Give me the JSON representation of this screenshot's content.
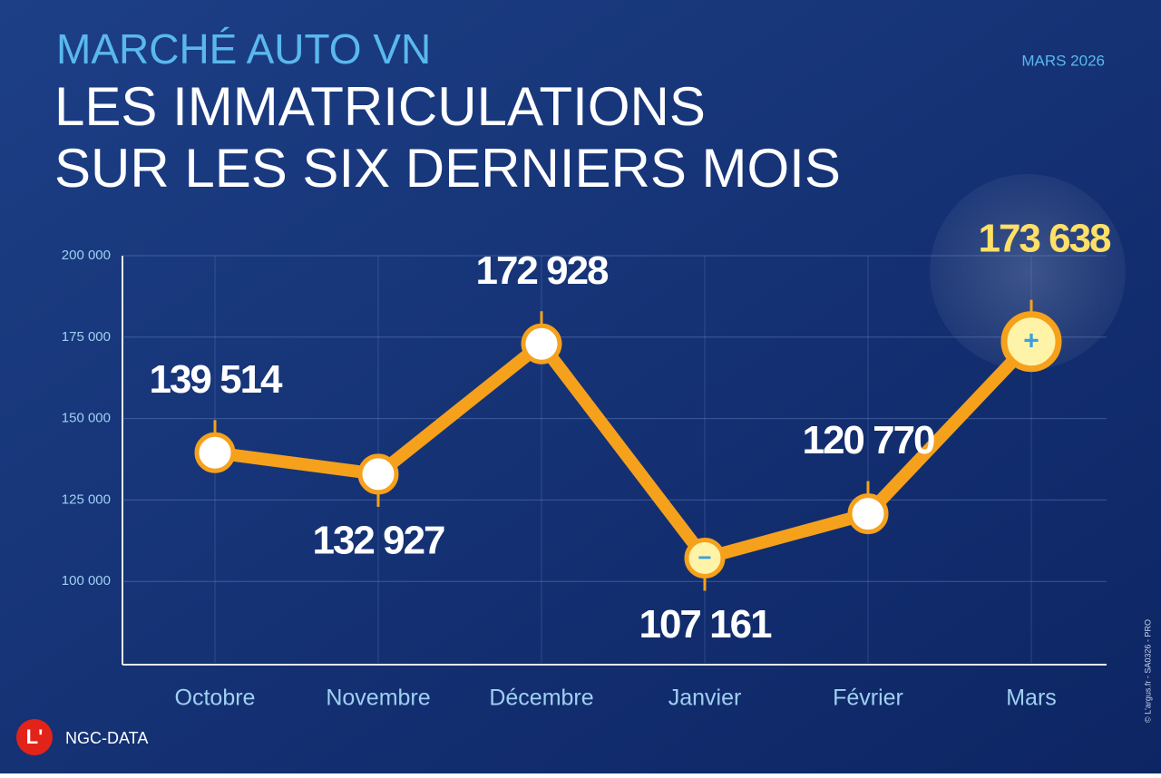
{
  "chart_data": {
    "type": "line",
    "supertitle": "MARCHÉ AUTO VN",
    "title": [
      "LES IMMATRICULATIONS",
      "SUR LES SIX DERNIERS MOIS"
    ],
    "date": "MARS 2026",
    "categories": [
      "Octobre",
      "Novembre",
      "Décembre",
      "Janvier",
      "Février",
      "Mars"
    ],
    "values": [
      139514,
      132927,
      172928,
      107161,
      120770,
      173638
    ],
    "value_labels": [
      "139 514",
      "132 927",
      "172 928",
      "107 161",
      "120 770",
      "173 638"
    ],
    "color": "#f5a11c",
    "ylim": [
      75000,
      200000
    ],
    "yticks": [
      {
        "value": 100000,
        "label": "100 000"
      },
      {
        "value": 125000,
        "label": "125 000"
      },
      {
        "value": 150000,
        "label": "150 000"
      },
      {
        "value": 175000,
        "label": "175 000"
      },
      {
        "value": 200000,
        "label": "200 000"
      }
    ],
    "grid": true,
    "logo": "L'",
    "brand": "NGC-DATA",
    "credit": "© L'argus.fr - SA0326 - PRO"
  }
}
